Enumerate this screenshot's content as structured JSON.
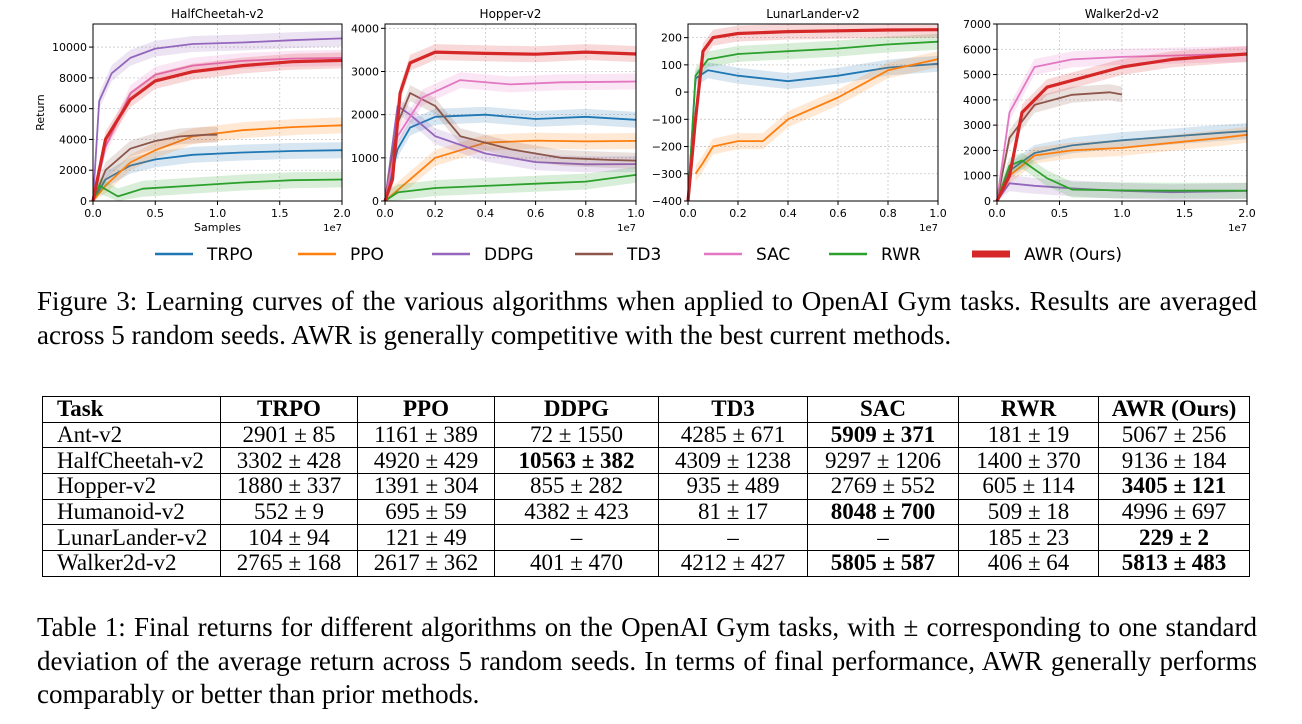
{
  "figure": {
    "legend": [
      {
        "name": "TRPO",
        "color": "#1f77b4"
      },
      {
        "name": "PPO",
        "color": "#ff7f0e"
      },
      {
        "name": "DDPG",
        "color": "#9467bd"
      },
      {
        "name": "TD3",
        "color": "#8c564b"
      },
      {
        "name": "SAC",
        "color": "#e377c2"
      },
      {
        "name": "RWR",
        "color": "#2ca02c"
      },
      {
        "name": "AWR (Ours)",
        "color": "#d62728"
      }
    ],
    "caption": "Figure 3: Learning curves of the various algorithms when applied to OpenAI Gym tasks. Results are averaged across 5 random seeds. AWR is generally competitive with the best current methods."
  },
  "chart_data": [
    {
      "type": "line",
      "title": "HalfCheetah-v2",
      "xlabel": "Samples",
      "ylabel": "Return",
      "x_offset_label": "1e7",
      "xlim": [
        0,
        2.0
      ],
      "ylim": [
        0,
        11500
      ],
      "xticks": [
        "0.0",
        "0.5",
        "1.0",
        "1.5",
        "2.0"
      ],
      "yticks": [
        "0",
        "2000",
        "4000",
        "6000",
        "8000",
        "10000"
      ],
      "grid": true,
      "series": [
        {
          "name": "TRPO",
          "x": [
            0,
            0.1,
            0.3,
            0.5,
            0.8,
            1.2,
            1.6,
            2.0
          ],
          "y": [
            0,
            1400,
            2300,
            2700,
            3000,
            3150,
            3250,
            3300
          ]
        },
        {
          "name": "PPO",
          "x": [
            0,
            0.1,
            0.3,
            0.5,
            0.8,
            1.2,
            1.6,
            2.0
          ],
          "y": [
            0,
            1000,
            2500,
            3300,
            4200,
            4600,
            4800,
            4920
          ]
        },
        {
          "name": "DDPG",
          "x": [
            0,
            0.05,
            0.15,
            0.3,
            0.5,
            0.8,
            1.2,
            1.6,
            2.0
          ],
          "y": [
            0,
            6500,
            8300,
            9300,
            9900,
            10200,
            10300,
            10450,
            10563
          ]
        },
        {
          "name": "TD3",
          "x": [
            0,
            0.1,
            0.3,
            0.5,
            0.7,
            0.9,
            1.0
          ],
          "y": [
            0,
            2000,
            3400,
            3900,
            4200,
            4300,
            4309
          ]
        },
        {
          "name": "SAC",
          "x": [
            0,
            0.1,
            0.3,
            0.5,
            0.8,
            1.2,
            1.6,
            2.0
          ],
          "y": [
            0,
            3500,
            7000,
            8200,
            8800,
            9100,
            9250,
            9297
          ]
        },
        {
          "name": "RWR",
          "x": [
            0,
            0.05,
            0.2,
            0.4,
            0.8,
            1.2,
            1.6,
            2.0
          ],
          "y": [
            0,
            1000,
            300,
            800,
            1000,
            1200,
            1350,
            1400
          ]
        },
        {
          "name": "AWR (Ours)",
          "x": [
            0,
            0.1,
            0.3,
            0.5,
            0.8,
            1.2,
            1.6,
            2.0
          ],
          "y": [
            0,
            4000,
            6600,
            7800,
            8400,
            8800,
            9050,
            9136
          ]
        }
      ]
    },
    {
      "type": "line",
      "title": "Hopper-v2",
      "xlabel": "",
      "ylabel": "",
      "x_offset_label": "1e7",
      "xlim": [
        0,
        1.0
      ],
      "ylim": [
        0,
        4100
      ],
      "xticks": [
        "0.0",
        "0.2",
        "0.4",
        "0.6",
        "0.8",
        "1.0"
      ],
      "yticks": [
        "0",
        "1000",
        "2000",
        "3000",
        "4000"
      ],
      "grid": true,
      "series": [
        {
          "name": "TRPO",
          "x": [
            0,
            0.05,
            0.1,
            0.2,
            0.4,
            0.6,
            0.8,
            1.0
          ],
          "y": [
            0,
            1200,
            1700,
            1950,
            2000,
            1900,
            1950,
            1880
          ]
        },
        {
          "name": "PPO",
          "x": [
            0,
            0.1,
            0.2,
            0.4,
            0.6,
            0.8,
            1.0
          ],
          "y": [
            0,
            500,
            1000,
            1350,
            1400,
            1380,
            1391
          ]
        },
        {
          "name": "DDPG",
          "x": [
            0,
            0.05,
            0.1,
            0.2,
            0.4,
            0.6,
            0.8,
            1.0
          ],
          "y": [
            0,
            2200,
            2000,
            1500,
            1100,
            900,
            850,
            855
          ]
        },
        {
          "name": "TD3",
          "x": [
            0,
            0.05,
            0.1,
            0.2,
            0.3,
            0.5,
            0.7,
            0.9,
            1.0
          ],
          "y": [
            0,
            1800,
            2500,
            2200,
            1500,
            1200,
            1000,
            950,
            935
          ]
        },
        {
          "name": "SAC",
          "x": [
            0,
            0.05,
            0.15,
            0.3,
            0.5,
            0.7,
            0.9,
            1.0
          ],
          "y": [
            0,
            1500,
            2400,
            2800,
            2700,
            2750,
            2760,
            2769
          ]
        },
        {
          "name": "RWR",
          "x": [
            0,
            0.05,
            0.2,
            0.4,
            0.6,
            0.8,
            1.0
          ],
          "y": [
            0,
            200,
            300,
            350,
            400,
            450,
            605
          ]
        },
        {
          "name": "AWR (Ours)",
          "x": [
            0,
            0.03,
            0.06,
            0.1,
            0.2,
            0.4,
            0.6,
            0.8,
            1.0
          ],
          "y": [
            0,
            500,
            2500,
            3200,
            3450,
            3420,
            3400,
            3450,
            3405
          ]
        }
      ]
    },
    {
      "type": "line",
      "title": "LunarLander-v2",
      "xlabel": "",
      "ylabel": "",
      "x_offset_label": "1e7",
      "xlim": [
        0,
        1.0
      ],
      "ylim": [
        -400,
        250
      ],
      "xticks": [
        "0.0",
        "0.2",
        "0.4",
        "0.6",
        "0.8",
        "1.0"
      ],
      "yticks": [
        "−400",
        "−300",
        "−200",
        "−100",
        "0",
        "100",
        "200"
      ],
      "grid": true,
      "series": [
        {
          "name": "TRPO",
          "x": [
            0,
            0.03,
            0.08,
            0.2,
            0.4,
            0.6,
            0.8,
            1.0
          ],
          "y": [
            -400,
            50,
            80,
            60,
            40,
            60,
            90,
            104
          ]
        },
        {
          "name": "PPO",
          "x": [
            0.03,
            0.06,
            0.1,
            0.2,
            0.3,
            0.4,
            0.6,
            0.8,
            1.0
          ],
          "y": [
            -300,
            -260,
            -200,
            -180,
            -180,
            -100,
            -20,
            80,
            121
          ]
        },
        {
          "name": "RWR",
          "x": [
            0,
            0.03,
            0.08,
            0.2,
            0.4,
            0.6,
            0.8,
            1.0
          ],
          "y": [
            -400,
            60,
            120,
            140,
            150,
            160,
            175,
            185
          ]
        },
        {
          "name": "AWR (Ours)",
          "x": [
            0,
            0.03,
            0.06,
            0.1,
            0.2,
            0.4,
            0.6,
            0.8,
            1.0
          ],
          "y": [
            -400,
            -100,
            150,
            200,
            215,
            222,
            225,
            228,
            229
          ]
        }
      ]
    },
    {
      "type": "line",
      "title": "Walker2d-v2",
      "xlabel": "",
      "ylabel": "",
      "x_offset_label": "1e7",
      "xlim": [
        0,
        2.0
      ],
      "ylim": [
        0,
        7000
      ],
      "xticks": [
        "0.0",
        "0.5",
        "1.0",
        "1.5",
        "2.0"
      ],
      "yticks": [
        "0",
        "1000",
        "2000",
        "3000",
        "4000",
        "5000",
        "6000",
        "7000"
      ],
      "grid": true,
      "series": [
        {
          "name": "TRPO",
          "x": [
            0,
            0.1,
            0.3,
            0.6,
            1.0,
            1.4,
            1.8,
            2.0
          ],
          "y": [
            0,
            1200,
            1900,
            2200,
            2400,
            2550,
            2700,
            2765
          ]
        },
        {
          "name": "PPO",
          "x": [
            0,
            0.1,
            0.3,
            0.6,
            1.0,
            1.4,
            1.8,
            2.0
          ],
          "y": [
            0,
            1000,
            1800,
            2000,
            2100,
            2300,
            2500,
            2617
          ]
        },
        {
          "name": "DDPG",
          "x": [
            0,
            0.1,
            0.3,
            0.6,
            1.0,
            1.4,
            1.8,
            2.0
          ],
          "y": [
            0,
            700,
            600,
            500,
            400,
            350,
            380,
            401
          ]
        },
        {
          "name": "TD3",
          "x": [
            0,
            0.1,
            0.3,
            0.6,
            0.9,
            1.0
          ],
          "y": [
            0,
            2500,
            3800,
            4200,
            4300,
            4212
          ]
        },
        {
          "name": "SAC",
          "x": [
            0,
            0.1,
            0.3,
            0.6,
            1.0,
            1.4,
            1.8,
            2.0
          ],
          "y": [
            0,
            3500,
            5300,
            5600,
            5700,
            5750,
            5800,
            5805
          ]
        },
        {
          "name": "RWR",
          "x": [
            0,
            0.1,
            0.2,
            0.4,
            0.6,
            1.0,
            1.4,
            2.0
          ],
          "y": [
            0,
            1400,
            1600,
            900,
            450,
            420,
            410,
            406
          ]
        },
        {
          "name": "AWR (Ours)",
          "x": [
            0,
            0.1,
            0.2,
            0.4,
            0.7,
            1.0,
            1.4,
            1.8,
            2.0
          ],
          "y": [
            0,
            1000,
            3500,
            4500,
            4900,
            5300,
            5600,
            5750,
            5813
          ]
        }
      ]
    },
    {
      "type": "table",
      "title": "",
      "columns": [
        "Task",
        "TRPO",
        "PPO",
        "DDPG",
        "TD3",
        "SAC",
        "RWR",
        "AWR (Ours)"
      ],
      "rows": [
        {
          "task": "Ant-v2",
          "cells": [
            "2901 ± 85",
            "1161 ± 389",
            "72 ± 1550",
            "4285 ± 671",
            "5909 ± 371",
            "181 ± 19",
            "5067 ± 256"
          ],
          "best": [
            4
          ]
        },
        {
          "task": "HalfCheetah-v2",
          "cells": [
            "3302 ± 428",
            "4920 ± 429",
            "10563 ± 382",
            "4309 ± 1238",
            "9297 ± 1206",
            "1400 ± 370",
            "9136 ± 184"
          ],
          "best": [
            2
          ]
        },
        {
          "task": "Hopper-v2",
          "cells": [
            "1880 ± 337",
            "1391 ± 304",
            "855 ± 282",
            "935 ± 489",
            "2769 ± 552",
            "605 ± 114",
            "3405 ± 121"
          ],
          "best": [
            6
          ]
        },
        {
          "task": "Humanoid-v2",
          "cells": [
            "552 ± 9",
            "695 ± 59",
            "4382 ± 423",
            "81 ± 17",
            "8048 ± 700",
            "509 ± 18",
            "4996 ± 697"
          ],
          "best": [
            4
          ]
        },
        {
          "task": "LunarLander-v2",
          "cells": [
            "104 ± 94",
            "121 ± 49",
            "–",
            "–",
            "–",
            "185 ± 23",
            "229 ± 2"
          ],
          "best": [
            6
          ]
        },
        {
          "task": "Walker2d-v2",
          "cells": [
            "2765 ± 168",
            "2617 ± 362",
            "401 ± 470",
            "4212 ± 427",
            "5805 ± 587",
            "406 ± 64",
            "5813 ± 483"
          ],
          "best": [
            4,
            6
          ]
        }
      ]
    }
  ],
  "table": {
    "caption": "Table 1: Final returns for different algorithms on the OpenAI Gym tasks, with ± corresponding to one standard deviation of the average return across 5 random seeds. In terms of final performance, AWR generally performs comparably or better than prior methods."
  }
}
